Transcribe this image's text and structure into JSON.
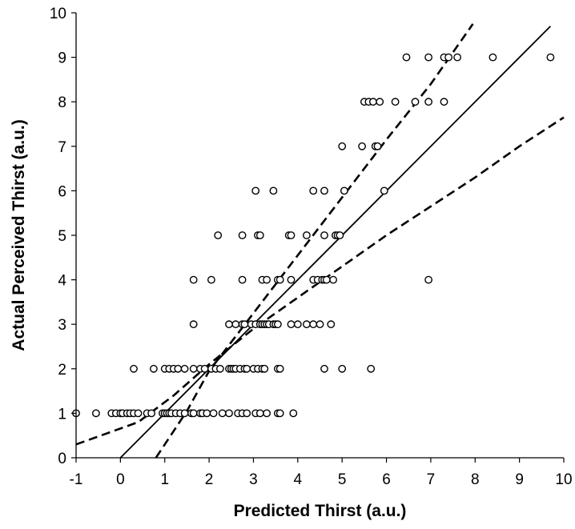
{
  "chart_data": {
    "type": "scatter",
    "title": "",
    "xlabel": "Predicted Thirst (a.u.)",
    "ylabel": "Actual Perceived Thirst (a.u.)",
    "xlim": [
      -1,
      10
    ],
    "ylim": [
      0,
      10
    ],
    "xticks": [
      -1,
      0,
      1,
      2,
      3,
      4,
      5,
      6,
      7,
      8,
      9,
      10
    ],
    "yticks": [
      0,
      1,
      2,
      3,
      4,
      5,
      6,
      7,
      8,
      9,
      10
    ],
    "grid": false,
    "legend": "none",
    "colors": {
      "points": "#000000",
      "lines": "#000000",
      "background": "#ffffff"
    },
    "points": [
      {
        "x": -1.0,
        "y": 1
      },
      {
        "x": -0.55,
        "y": 1
      },
      {
        "x": -0.2,
        "y": 1
      },
      {
        "x": -0.1,
        "y": 1
      },
      {
        "x": 0.0,
        "y": 1
      },
      {
        "x": 0.05,
        "y": 1
      },
      {
        "x": 0.15,
        "y": 1
      },
      {
        "x": 0.22,
        "y": 1
      },
      {
        "x": 0.3,
        "y": 1
      },
      {
        "x": 0.4,
        "y": 1
      },
      {
        "x": 0.6,
        "y": 1
      },
      {
        "x": 0.7,
        "y": 1
      },
      {
        "x": 0.95,
        "y": 1
      },
      {
        "x": 1.0,
        "y": 1
      },
      {
        "x": 1.05,
        "y": 1
      },
      {
        "x": 1.1,
        "y": 1
      },
      {
        "x": 1.15,
        "y": 1
      },
      {
        "x": 1.25,
        "y": 1
      },
      {
        "x": 1.35,
        "y": 1
      },
      {
        "x": 1.45,
        "y": 1
      },
      {
        "x": 1.6,
        "y": 1
      },
      {
        "x": 1.65,
        "y": 1
      },
      {
        "x": 1.8,
        "y": 1
      },
      {
        "x": 1.85,
        "y": 1
      },
      {
        "x": 1.95,
        "y": 1
      },
      {
        "x": 2.1,
        "y": 1
      },
      {
        "x": 2.3,
        "y": 1
      },
      {
        "x": 2.45,
        "y": 1
      },
      {
        "x": 2.65,
        "y": 1
      },
      {
        "x": 2.75,
        "y": 1
      },
      {
        "x": 2.85,
        "y": 1
      },
      {
        "x": 3.05,
        "y": 1
      },
      {
        "x": 3.15,
        "y": 1
      },
      {
        "x": 3.3,
        "y": 1
      },
      {
        "x": 3.55,
        "y": 1
      },
      {
        "x": 3.6,
        "y": 1
      },
      {
        "x": 3.9,
        "y": 1
      },
      {
        "x": 0.3,
        "y": 2
      },
      {
        "x": 0.75,
        "y": 2
      },
      {
        "x": 1.0,
        "y": 2
      },
      {
        "x": 1.1,
        "y": 2
      },
      {
        "x": 1.2,
        "y": 2
      },
      {
        "x": 1.3,
        "y": 2
      },
      {
        "x": 1.45,
        "y": 2
      },
      {
        "x": 1.65,
        "y": 2
      },
      {
        "x": 1.8,
        "y": 2
      },
      {
        "x": 1.9,
        "y": 2
      },
      {
        "x": 2.05,
        "y": 2
      },
      {
        "x": 2.15,
        "y": 2
      },
      {
        "x": 2.25,
        "y": 2
      },
      {
        "x": 2.45,
        "y": 2
      },
      {
        "x": 2.5,
        "y": 2
      },
      {
        "x": 2.55,
        "y": 2
      },
      {
        "x": 2.6,
        "y": 2
      },
      {
        "x": 2.7,
        "y": 2
      },
      {
        "x": 2.8,
        "y": 2
      },
      {
        "x": 2.85,
        "y": 2
      },
      {
        "x": 3.0,
        "y": 2
      },
      {
        "x": 3.1,
        "y": 2
      },
      {
        "x": 3.2,
        "y": 2
      },
      {
        "x": 3.25,
        "y": 2
      },
      {
        "x": 3.55,
        "y": 2
      },
      {
        "x": 3.6,
        "y": 2
      },
      {
        "x": 4.6,
        "y": 2
      },
      {
        "x": 5.0,
        "y": 2
      },
      {
        "x": 5.65,
        "y": 2
      },
      {
        "x": 1.65,
        "y": 3
      },
      {
        "x": 2.45,
        "y": 3
      },
      {
        "x": 2.6,
        "y": 3
      },
      {
        "x": 2.75,
        "y": 3
      },
      {
        "x": 2.8,
        "y": 3
      },
      {
        "x": 2.95,
        "y": 3
      },
      {
        "x": 3.05,
        "y": 3
      },
      {
        "x": 3.15,
        "y": 3
      },
      {
        "x": 3.2,
        "y": 3
      },
      {
        "x": 3.25,
        "y": 3
      },
      {
        "x": 3.3,
        "y": 3
      },
      {
        "x": 3.35,
        "y": 3
      },
      {
        "x": 3.45,
        "y": 3
      },
      {
        "x": 3.5,
        "y": 3
      },
      {
        "x": 3.55,
        "y": 3
      },
      {
        "x": 3.85,
        "y": 3
      },
      {
        "x": 4.0,
        "y": 3
      },
      {
        "x": 4.2,
        "y": 3
      },
      {
        "x": 4.35,
        "y": 3
      },
      {
        "x": 4.5,
        "y": 3
      },
      {
        "x": 4.75,
        "y": 3
      },
      {
        "x": 1.65,
        "y": 4
      },
      {
        "x": 2.05,
        "y": 4
      },
      {
        "x": 2.75,
        "y": 4
      },
      {
        "x": 3.2,
        "y": 4
      },
      {
        "x": 3.3,
        "y": 4
      },
      {
        "x": 3.55,
        "y": 4
      },
      {
        "x": 3.6,
        "y": 4
      },
      {
        "x": 3.85,
        "y": 4
      },
      {
        "x": 4.35,
        "y": 4
      },
      {
        "x": 4.45,
        "y": 4
      },
      {
        "x": 4.55,
        "y": 4
      },
      {
        "x": 4.6,
        "y": 4
      },
      {
        "x": 4.65,
        "y": 4
      },
      {
        "x": 4.8,
        "y": 4
      },
      {
        "x": 6.95,
        "y": 4
      },
      {
        "x": 2.2,
        "y": 5
      },
      {
        "x": 2.75,
        "y": 5
      },
      {
        "x": 3.1,
        "y": 5
      },
      {
        "x": 3.15,
        "y": 5
      },
      {
        "x": 3.8,
        "y": 5
      },
      {
        "x": 3.85,
        "y": 5
      },
      {
        "x": 4.2,
        "y": 5
      },
      {
        "x": 4.6,
        "y": 5
      },
      {
        "x": 4.85,
        "y": 5
      },
      {
        "x": 4.9,
        "y": 5
      },
      {
        "x": 4.95,
        "y": 5
      },
      {
        "x": 3.05,
        "y": 6
      },
      {
        "x": 3.45,
        "y": 6
      },
      {
        "x": 4.35,
        "y": 6
      },
      {
        "x": 4.6,
        "y": 6
      },
      {
        "x": 5.05,
        "y": 6
      },
      {
        "x": 5.95,
        "y": 6
      },
      {
        "x": 5.0,
        "y": 7
      },
      {
        "x": 5.45,
        "y": 7
      },
      {
        "x": 5.75,
        "y": 7
      },
      {
        "x": 5.8,
        "y": 7
      },
      {
        "x": 5.5,
        "y": 8
      },
      {
        "x": 5.6,
        "y": 8
      },
      {
        "x": 5.7,
        "y": 8
      },
      {
        "x": 5.85,
        "y": 8
      },
      {
        "x": 6.2,
        "y": 8
      },
      {
        "x": 6.65,
        "y": 8
      },
      {
        "x": 6.95,
        "y": 8
      },
      {
        "x": 7.3,
        "y": 8
      },
      {
        "x": 6.45,
        "y": 9
      },
      {
        "x": 6.95,
        "y": 9
      },
      {
        "x": 7.3,
        "y": 9
      },
      {
        "x": 7.4,
        "y": 9
      },
      {
        "x": 7.6,
        "y": 9
      },
      {
        "x": 8.4,
        "y": 9
      },
      {
        "x": 9.7,
        "y": 9
      }
    ],
    "lines": [
      {
        "style": "solid",
        "x": [
          0.0,
          9.7
        ],
        "y": [
          0.0,
          9.7
        ]
      },
      {
        "style": "dashed",
        "x": [
          -1.0,
          0.4,
          1.2,
          2.0,
          3.0,
          4.0,
          5.0,
          6.0,
          7.0,
          8.0,
          9.0,
          10.0
        ],
        "y": [
          0.3,
          0.8,
          1.4,
          2.1,
          2.9,
          3.6,
          4.3,
          5.0,
          5.65,
          6.3,
          7.0,
          7.65
        ]
      },
      {
        "style": "dashed",
        "x": [
          0.8,
          1.5,
          2.0,
          3.0,
          4.0,
          5.0,
          6.0,
          7.0,
          7.95
        ],
        "y": [
          0.0,
          1.05,
          1.95,
          3.25,
          4.55,
          5.85,
          7.15,
          8.4,
          9.75
        ]
      }
    ]
  }
}
